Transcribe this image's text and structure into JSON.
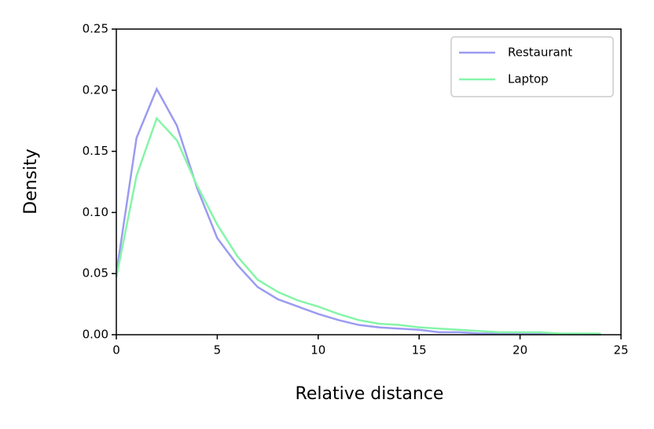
{
  "chart_data": {
    "type": "line",
    "x_label": "Relative distance",
    "y_label": "Density",
    "x": [
      0,
      1,
      2,
      3,
      4,
      5,
      6,
      7,
      8,
      9,
      10,
      11,
      12,
      13,
      14,
      15,
      16,
      17,
      18,
      19,
      20,
      21,
      22,
      23,
      24
    ],
    "series": [
      {
        "name": "Restaurant",
        "color": "#9b9bf2",
        "values": [
          0.05,
          0.161,
          0.201,
          0.171,
          0.12,
          0.079,
          0.057,
          0.039,
          0.029,
          0.023,
          0.017,
          0.012,
          0.008,
          0.006,
          0.005,
          0.004,
          0.002,
          0.002,
          0.001,
          0.001,
          0.001,
          0.001,
          0.0005,
          0.0003,
          0.0002
        ]
      },
      {
        "name": "Laptop",
        "color": "#85f5a8",
        "values": [
          0.047,
          0.13,
          0.177,
          0.159,
          0.122,
          0.09,
          0.064,
          0.045,
          0.035,
          0.028,
          0.023,
          0.017,
          0.012,
          0.009,
          0.008,
          0.006,
          0.005,
          0.004,
          0.003,
          0.002,
          0.002,
          0.002,
          0.001,
          0.001,
          0.001
        ]
      }
    ],
    "xlim": [
      0,
      25
    ],
    "ylim": [
      0,
      0.25
    ],
    "xticks": [
      0,
      5,
      10,
      15,
      20,
      25
    ],
    "yticks": [
      {
        "value": 0,
        "label": "0.00"
      },
      {
        "value": 0.05,
        "label": "0.05"
      },
      {
        "value": 0.1,
        "label": "0.10"
      },
      {
        "value": 0.15,
        "label": "0.15"
      },
      {
        "value": 0.2,
        "label": "0.20"
      },
      {
        "value": 0.25,
        "label": "0.25"
      }
    ],
    "legend": "upper right"
  }
}
